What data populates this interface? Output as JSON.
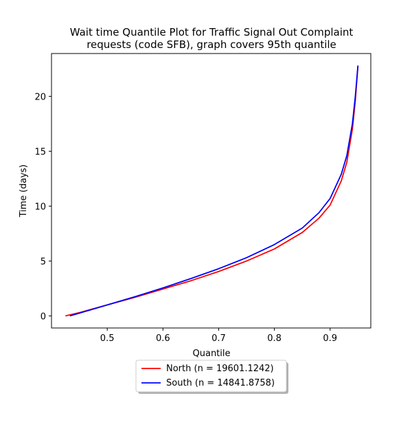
{
  "chart_data": {
    "type": "line",
    "title_lines": [
      "Wait time Quantile Plot for Traffic Signal Out Complaint",
      "requests (code SFB), graph covers 95th quantile"
    ],
    "xlabel": "Quantile",
    "ylabel": "Time (days)",
    "xlim": [
      0.4,
      0.973
    ],
    "ylim": [
      -1.1,
      23.9
    ],
    "xticks": [
      0.5,
      0.6,
      0.7,
      0.8,
      0.9
    ],
    "xtick_labels": [
      "0.5",
      "0.6",
      "0.7",
      "0.8",
      "0.9"
    ],
    "yticks": [
      0,
      5,
      10,
      15,
      20
    ],
    "ytick_labels": [
      "0",
      "5",
      "10",
      "15",
      "20"
    ],
    "grid": false,
    "legend_placement": "below plot, centered",
    "series": [
      {
        "name": "North (n = 19601.1242)",
        "color": "#ff0000",
        "x": [
          0.425,
          0.45,
          0.5,
          0.55,
          0.6,
          0.65,
          0.7,
          0.75,
          0.8,
          0.85,
          0.88,
          0.9,
          0.92,
          0.93,
          0.94,
          0.945,
          0.95
        ],
        "y": [
          0.0,
          0.3,
          1.0,
          1.7,
          2.45,
          3.2,
          4.05,
          5.0,
          6.1,
          7.6,
          8.9,
          10.1,
          12.3,
          14.0,
          17.0,
          19.5,
          22.8
        ]
      },
      {
        "name": "South (n = 14841.8758)",
        "color": "#0000ff",
        "x": [
          0.433,
          0.45,
          0.5,
          0.55,
          0.6,
          0.65,
          0.7,
          0.75,
          0.8,
          0.85,
          0.88,
          0.9,
          0.92,
          0.93,
          0.94,
          0.945,
          0.95
        ],
        "y": [
          0.0,
          0.25,
          1.0,
          1.75,
          2.55,
          3.4,
          4.3,
          5.3,
          6.5,
          8.0,
          9.4,
          10.7,
          12.9,
          14.6,
          17.5,
          19.9,
          22.8
        ]
      }
    ]
  }
}
